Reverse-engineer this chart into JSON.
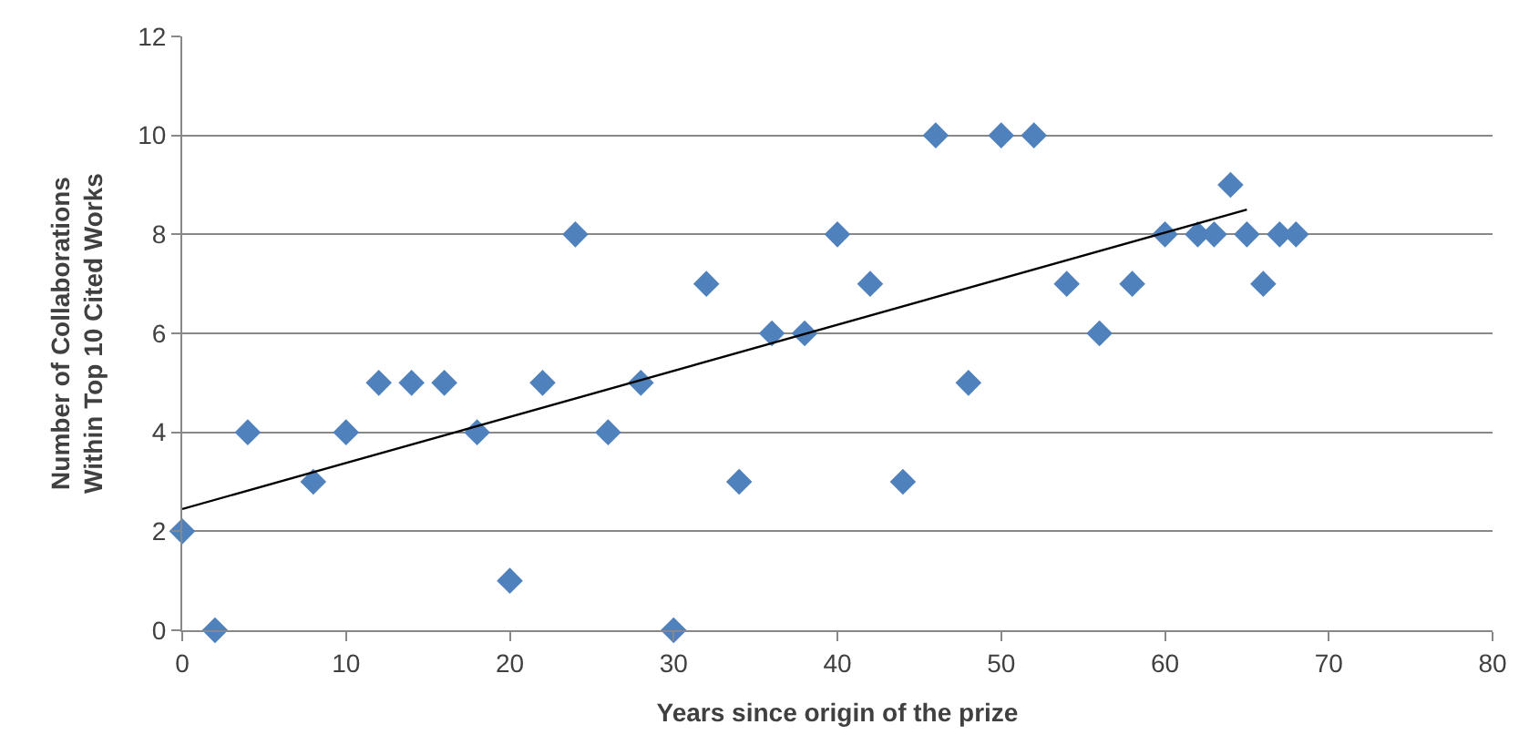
{
  "chart_data": {
    "type": "scatter",
    "xlabel": "Years since origin of the prize",
    "ylabel": "Number of Collaborations\nWithin Top 10 Cited Works",
    "xlim": [
      0,
      80
    ],
    "xticks": [
      0,
      10,
      20,
      30,
      40,
      50,
      60,
      70,
      80
    ],
    "ylim": [
      0,
      12
    ],
    "yticks": [
      0,
      2,
      4,
      6,
      8,
      10,
      12
    ],
    "grid": "y",
    "marker": "diamond",
    "series": [
      {
        "color": "#4f81bd",
        "x": [
          0,
          2,
          4,
          8,
          10,
          12,
          14,
          16,
          18,
          20,
          22,
          24,
          26,
          28,
          30,
          32,
          34,
          36,
          38,
          40,
          42,
          44,
          46,
          48,
          50,
          52,
          54,
          56,
          58,
          60,
          62,
          63,
          64,
          65,
          66,
          67,
          68
        ],
        "values": [
          2,
          0,
          4,
          3,
          4,
          5,
          5,
          5,
          4,
          1,
          5,
          8,
          4,
          5,
          0,
          7,
          3,
          6,
          6,
          8,
          7,
          3,
          10,
          5,
          10,
          10,
          7,
          6,
          7,
          8,
          8,
          8,
          9,
          8,
          7,
          8,
          8
        ]
      },
      {
        "type": "line",
        "marker": "none",
        "color": "#000000",
        "x": [
          0,
          65
        ],
        "values": [
          2.45,
          8.5
        ]
      }
    ]
  }
}
